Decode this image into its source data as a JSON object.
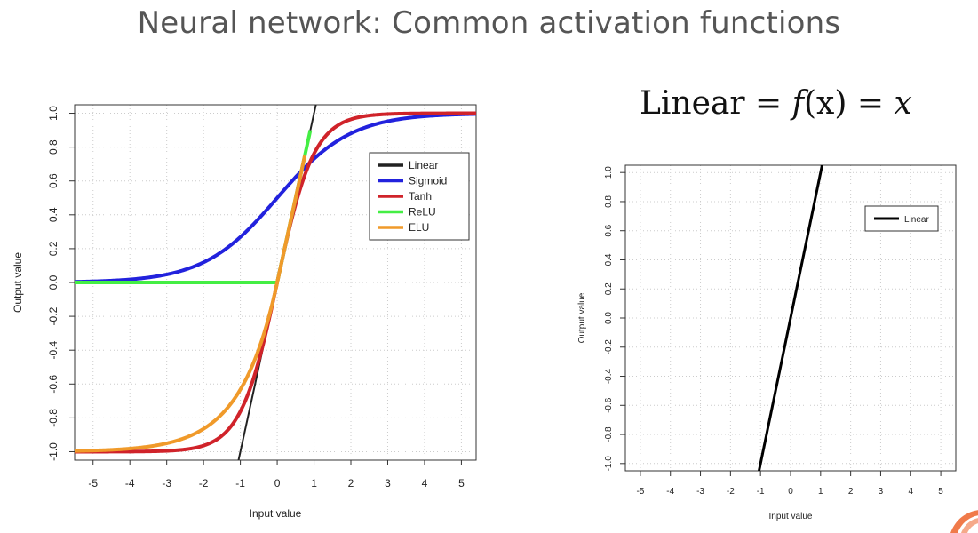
{
  "slide": {
    "title": "Neural network: Common activation functions",
    "formula": {
      "lhs": "Linear",
      "eq1": "=",
      "fn": "f",
      "arg": "(x)",
      "eq2": "=",
      "rhs": "x"
    }
  },
  "colors": {
    "Linear": "#222222",
    "Sigmoid": "#2222dd",
    "Tanh": "#d0232a",
    "ReLU": "#44ee44",
    "ELU": "#f09a2a",
    "Linear_bold": "#000000",
    "grid": "#cccccc"
  },
  "chart_data": [
    {
      "type": "line",
      "xlabel": "Input value",
      "ylabel": "Output value",
      "xlim": [
        -5.5,
        5.4
      ],
      "ylim": [
        -1.05,
        1.05
      ],
      "xticks": [
        -5,
        -4,
        -3,
        -2,
        -1,
        0,
        1,
        2,
        3,
        4,
        5
      ],
      "yticks": [
        -1.0,
        -0.8,
        -0.6,
        -0.4,
        -0.2,
        0.0,
        0.2,
        0.4,
        0.6,
        0.8,
        1.0
      ],
      "grid": true,
      "legend": "top-right",
      "series": [
        {
          "name": "Linear",
          "function": "y = x",
          "x_range": [
            -1.05,
            1.05
          ]
        },
        {
          "name": "Sigmoid",
          "function": "y = 1/(1+exp(-x))",
          "x_range": [
            -5.5,
            5.4
          ]
        },
        {
          "name": "Tanh",
          "function": "y = tanh(x)",
          "x_range": [
            -5.5,
            5.4
          ]
        },
        {
          "name": "ReLU",
          "function": "y = max(0, x)",
          "x_range": [
            -5.5,
            0.9
          ]
        },
        {
          "name": "ELU",
          "function": "y = x if x>0 else exp(x)-1",
          "x_range": [
            -5.5,
            0.75
          ]
        }
      ]
    },
    {
      "type": "line",
      "xlabel": "Input value",
      "ylabel": "Output value",
      "xlim": [
        -5.5,
        5.5
      ],
      "ylim": [
        -1.05,
        1.05
      ],
      "xticks": [
        -5,
        -4,
        -3,
        -2,
        -1,
        0,
        1,
        2,
        3,
        4,
        5
      ],
      "yticks": [
        -1.0,
        -0.8,
        -0.6,
        -0.4,
        -0.2,
        0.0,
        0.2,
        0.4,
        0.6,
        0.8,
        1.0
      ],
      "grid": true,
      "legend": "top-right",
      "series": [
        {
          "name": "Linear",
          "function": "y = x",
          "x_range": [
            -1.05,
            1.05
          ]
        }
      ]
    }
  ]
}
